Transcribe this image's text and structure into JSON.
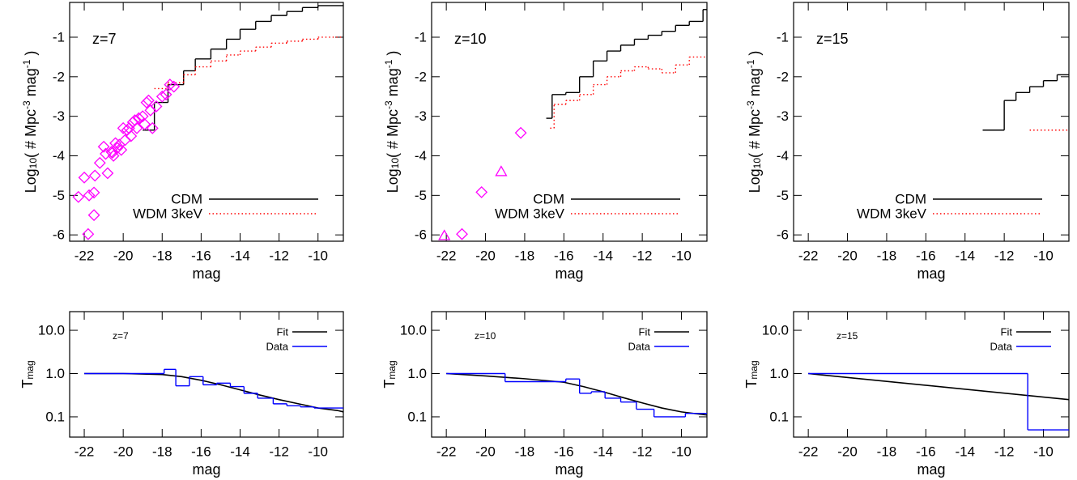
{
  "chart_data": [
    {
      "type": "step",
      "annotation": "z=7",
      "xlabel": "mag",
      "ylabel": [
        "Log",
        "10",
        "( # Mpc",
        "-3",
        " mag",
        "-1",
        " )"
      ],
      "xlim": [
        -22.75,
        -8.7
      ],
      "ylim": [
        -6.16,
        -0.12
      ],
      "xticks": [
        -22,
        -20,
        -18,
        -16,
        -14,
        -12,
        -10
      ],
      "yticks": [
        -1,
        -2,
        -3,
        -4,
        -5,
        -6
      ],
      "legend": "lower right",
      "series": [
        {
          "name": "CDM",
          "color": "#000000",
          "style": "solid",
          "bins": [
            -19,
            -18.4,
            -17.7,
            -16.9,
            -16.3,
            -15.5,
            -14.7,
            -14.0,
            -13.2,
            -12.4,
            -11.6,
            -10.8,
            -10.0,
            -8.7
          ],
          "values": [
            -3.35,
            -2.65,
            -2.2,
            -1.85,
            -1.55,
            -1.3,
            -1.05,
            -0.8,
            -0.6,
            -0.45,
            -0.35,
            -0.25,
            -0.2
          ]
        },
        {
          "name": "WDM 3keV",
          "color": "#ff0000",
          "style": "dotted",
          "bins": [
            -18.4,
            -17.7,
            -16.9,
            -16.3,
            -15.5,
            -14.7,
            -14.0,
            -13.2,
            -12.4,
            -11.6,
            -10.8,
            -10.0,
            -8.7
          ],
          "values": [
            -2.3,
            -2.15,
            -1.95,
            -1.75,
            -1.6,
            -1.45,
            -1.35,
            -1.25,
            -1.15,
            -1.1,
            -1.05,
            -1.0
          ]
        },
        {
          "color": "#ff00ff",
          "marker": "diamond",
          "x": [
            -22.3,
            -22.0,
            -21.75,
            -21.8,
            -21.5,
            -21.45,
            -21.5,
            -21.2,
            -21.0,
            -20.8,
            -20.9,
            -20.6,
            -20.55,
            -20.4,
            -20.5,
            -20.2,
            -20.0,
            -19.9,
            -20.1,
            -19.8,
            -19.6,
            -19.5,
            -19.3,
            -19.2,
            -19.0,
            -18.9,
            -18.7,
            -18.6,
            -18.5,
            -18.3,
            -18.0,
            -17.8,
            -17.6,
            -17.4,
            -20.3,
            -19.7,
            -19.4,
            -18.8
          ],
          "values": [
            -5.04,
            -4.55,
            -5.0,
            -5.98,
            -5.5,
            -4.5,
            -4.93,
            -4.18,
            -3.77,
            -4.44,
            -3.95,
            -3.9,
            -3.92,
            -3.68,
            -4.0,
            -3.72,
            -3.3,
            -3.6,
            -3.85,
            -3.35,
            -3.5,
            -3.15,
            -3.3,
            -3.05,
            -3.0,
            -3.2,
            -2.6,
            -2.85,
            -3.3,
            -2.75,
            -2.5,
            -2.45,
            -2.2,
            -2.25,
            -3.8,
            -3.3,
            -3.1,
            -2.65
          ]
        }
      ]
    },
    {
      "type": "step",
      "annotation": "z=10",
      "xlabel": "mag",
      "ylabel": [
        "Log",
        "10",
        "( # Mpc",
        "-3",
        " mag",
        "-1",
        " )"
      ],
      "xlim": [
        -22.75,
        -8.7
      ],
      "ylim": [
        -6.16,
        -0.12
      ],
      "xticks": [
        -22,
        -20,
        -18,
        -16,
        -14,
        -12,
        -10
      ],
      "yticks": [
        -1,
        -2,
        -3,
        -4,
        -5,
        -6
      ],
      "legend": "lower right",
      "series": [
        {
          "name": "CDM",
          "color": "#000000",
          "style": "solid",
          "bins": [
            -16.9,
            -16.6,
            -15.9,
            -15.2,
            -14.5,
            -13.8,
            -13.1,
            -12.4,
            -11.7,
            -11.0,
            -10.3,
            -9.6,
            -8.9,
            -8.7
          ],
          "values": [
            -3.05,
            -2.45,
            -2.4,
            -2.0,
            -1.6,
            -1.35,
            -1.2,
            -1.05,
            -0.95,
            -0.85,
            -0.7,
            -0.6,
            -0.3
          ]
        },
        {
          "name": "WDM 3keV",
          "color": "#ff0000",
          "style": "dotted",
          "bins": [
            -16.7,
            -16.5,
            -15.9,
            -15.2,
            -14.5,
            -13.8,
            -13.1,
            -12.4,
            -11.7,
            -11.0,
            -10.3,
            -9.6,
            -8.7
          ],
          "values": [
            -3.3,
            -2.7,
            -2.6,
            -2.45,
            -2.2,
            -2.0,
            -1.85,
            -1.75,
            -1.8,
            -1.9,
            -1.7,
            -1.5
          ]
        },
        {
          "color": "#ff00ff",
          "marker": "diamond",
          "x": [
            -21.2,
            -20.2,
            -18.2
          ],
          "values": [
            -5.98,
            -4.92,
            -3.42
          ]
        },
        {
          "color": "#ff00ff",
          "marker": "triangle",
          "x": [
            -22.1,
            -19.2
          ],
          "values": [
            -6.02,
            -4.4
          ]
        }
      ]
    },
    {
      "type": "step",
      "annotation": "z=15",
      "xlabel": "mag",
      "ylabel": [
        "Log",
        "10",
        "( # Mpc",
        "-3",
        " mag",
        "-1",
        " )"
      ],
      "xlim": [
        -22.75,
        -8.7
      ],
      "ylim": [
        -6.16,
        -0.12
      ],
      "xticks": [
        -22,
        -20,
        -18,
        -16,
        -14,
        -12,
        -10
      ],
      "yticks": [
        -1,
        -2,
        -3,
        -4,
        -5,
        -6
      ],
      "legend": "lower right",
      "series": [
        {
          "name": "CDM",
          "color": "#000000",
          "style": "solid",
          "bins": [
            -13.1,
            -12.0,
            -11.4,
            -10.7,
            -10.0,
            -9.3,
            -8.7
          ],
          "values": [
            -3.35,
            -2.6,
            -2.4,
            -2.25,
            -2.1,
            -1.95
          ]
        },
        {
          "name": "WDM 3keV",
          "color": "#ff0000",
          "style": "dotted",
          "bins": [
            -10.7,
            -8.7
          ],
          "values": [
            -3.35
          ]
        }
      ]
    },
    {
      "type": "step",
      "annotation": "z=7",
      "xlabel": "mag",
      "ylabel": [
        "T",
        "mag"
      ],
      "log_y": true,
      "xlim": [
        -22.75,
        -8.7
      ],
      "ylim": [
        0.034,
        27
      ],
      "xticks": [
        -22,
        -20,
        -18,
        -16,
        -14,
        -12,
        -10
      ],
      "yticks": [
        {
          "value": 10,
          "label": "10.0"
        },
        {
          "value": 1,
          "label": "1.0"
        },
        0.1
      ],
      "legend": "upper right",
      "series": [
        {
          "name": "Fit",
          "color": "#000000",
          "style": "curve",
          "x": [
            -22,
            -20,
            -18,
            -17,
            -16,
            -15,
            -14,
            -13,
            -12,
            -11,
            -10,
            -9,
            -8.7
          ],
          "values": [
            1.0,
            1.0,
            0.95,
            0.85,
            0.7,
            0.55,
            0.42,
            0.32,
            0.25,
            0.2,
            0.16,
            0.14,
            0.13
          ]
        },
        {
          "name": "Data",
          "color": "#0000ff",
          "style": "solid",
          "bins": [
            -22,
            -17.9,
            -17.3,
            -16.6,
            -15.9,
            -15.2,
            -14.5,
            -13.8,
            -13.1,
            -12.3,
            -11.6,
            -10.9,
            -10.2,
            -8.7
          ],
          "values": [
            1.0,
            1.25,
            0.52,
            0.85,
            0.55,
            0.6,
            0.5,
            0.35,
            0.27,
            0.2,
            0.18,
            0.17,
            0.16
          ]
        }
      ]
    },
    {
      "type": "step",
      "annotation": "z=10",
      "xlabel": "mag",
      "ylabel": [
        "T",
        "mag"
      ],
      "log_y": true,
      "xlim": [
        -22.75,
        -8.7
      ],
      "ylim": [
        0.034,
        27
      ],
      "xticks": [
        -22,
        -20,
        -18,
        -16,
        -14,
        -12,
        -10
      ],
      "yticks": [
        {
          "value": 10,
          "label": "10.0"
        },
        {
          "value": 1,
          "label": "1.0"
        },
        0.1
      ],
      "legend": "upper right",
      "series": [
        {
          "name": "Fit",
          "color": "#000000",
          "style": "curve",
          "x": [
            -22,
            -20,
            -18,
            -16,
            -15,
            -14,
            -13,
            -12,
            -11,
            -10,
            -8.7
          ],
          "values": [
            1.0,
            0.88,
            0.76,
            0.63,
            0.5,
            0.38,
            0.28,
            0.21,
            0.16,
            0.13,
            0.11
          ]
        },
        {
          "name": "Data",
          "color": "#0000ff",
          "style": "solid",
          "bins": [
            -22,
            -19,
            -15.9,
            -15.2,
            -14.6,
            -13.9,
            -13.1,
            -12.3,
            -11.4,
            -9.8,
            -8.7
          ],
          "values": [
            1.0,
            0.65,
            0.75,
            0.35,
            0.38,
            0.27,
            0.22,
            0.15,
            0.1,
            0.12
          ]
        }
      ]
    },
    {
      "type": "step",
      "annotation": "z=15",
      "xlabel": "mag",
      "ylabel": [
        "T",
        "mag"
      ],
      "log_y": true,
      "xlim": [
        -22.75,
        -8.7
      ],
      "ylim": [
        0.034,
        27
      ],
      "xticks": [
        -22,
        -20,
        -18,
        -16,
        -14,
        -12,
        -10
      ],
      "yticks": [
        {
          "value": 10,
          "label": "10.0"
        },
        {
          "value": 1,
          "label": "1.0"
        },
        0.1
      ],
      "legend": "upper right",
      "series": [
        {
          "name": "Fit",
          "color": "#000000",
          "style": "curve",
          "x": [
            -22,
            -8.7
          ],
          "values": [
            1.0,
            0.25
          ]
        },
        {
          "name": "Data",
          "color": "#0000ff",
          "style": "solid",
          "bins": [
            -22,
            -10.8,
            -8.7
          ],
          "values": [
            1.0,
            0.05
          ]
        }
      ]
    }
  ]
}
